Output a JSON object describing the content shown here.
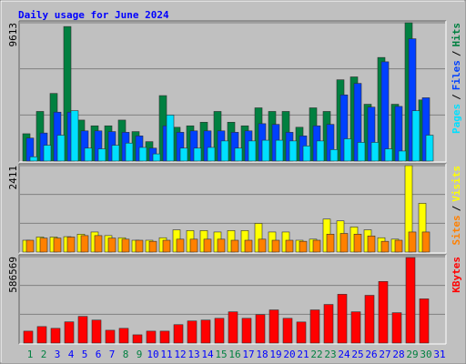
{
  "title": "Daily usage for June 2024",
  "legend_separator": "/",
  "chart_data": [
    {
      "type": "bar",
      "ylim": [
        0,
        9613
      ],
      "yticks": [
        9613
      ],
      "series": [
        {
          "name": "Hits",
          "color": "#008040",
          "values": [
            1900,
            3450,
            4700,
            9350,
            2850,
            2450,
            2450,
            2850,
            2050,
            1350,
            4550,
            2350,
            2450,
            2700,
            3450,
            2700,
            2450,
            3700,
            3450,
            3450,
            2350,
            3700,
            3450,
            5650,
            5850,
            3950,
            7200,
            3950,
            9613,
            4250,
            null
          ]
        },
        {
          "name": "Files",
          "color": "#0040ff",
          "values": [
            1600,
            1950,
            3400,
            3400,
            2100,
            2100,
            2050,
            2000,
            1750,
            900,
            2450,
            2000,
            2100,
            2100,
            2100,
            2000,
            2100,
            2600,
            2550,
            2000,
            1750,
            2450,
            2550,
            4600,
            5400,
            3750,
            6900,
            3800,
            8500,
            4400,
            null
          ]
        },
        {
          "name": "Pages",
          "color": "#00e0ff",
          "values": [
            300,
            1100,
            1800,
            3500,
            900,
            850,
            1100,
            1250,
            950,
            500,
            3200,
            900,
            900,
            950,
            1400,
            900,
            1400,
            1450,
            1450,
            1400,
            1050,
            1400,
            800,
            1550,
            1300,
            1300,
            850,
            700,
            3500,
            1800,
            null
          ]
        }
      ]
    },
    {
      "type": "bar",
      "ylim": [
        0,
        2411
      ],
      "yticks": [
        2411
      ],
      "series": [
        {
          "name": "Visits",
          "color": "#ffff00",
          "values": [
            330,
            420,
            420,
            430,
            500,
            560,
            460,
            400,
            330,
            330,
            400,
            620,
            600,
            600,
            560,
            600,
            600,
            800,
            560,
            560,
            330,
            360,
            920,
            870,
            700,
            620,
            400,
            360,
            2411,
            1360,
            null
          ]
        },
        {
          "name": "Sites",
          "color": "#ff8000",
          "values": [
            330,
            390,
            390,
            420,
            460,
            460,
            390,
            360,
            330,
            300,
            330,
            360,
            360,
            360,
            360,
            330,
            330,
            360,
            330,
            330,
            300,
            330,
            500,
            520,
            500,
            450,
            300,
            330,
            560,
            560,
            null
          ]
        }
      ]
    },
    {
      "type": "bar",
      "ylim": [
        0,
        586569
      ],
      "yticks": [
        586569
      ],
      "categories": [
        1,
        2,
        3,
        4,
        5,
        6,
        7,
        8,
        9,
        10,
        11,
        12,
        13,
        14,
        15,
        16,
        17,
        18,
        19,
        20,
        21,
        22,
        23,
        24,
        25,
        26,
        27,
        28,
        29,
        30,
        31
      ],
      "category_colors": [
        "#008040",
        "#008040",
        "#0000ff",
        "#0000ff",
        "#0000ff",
        "#0000ff",
        "#0000ff",
        "#008040",
        "#008040",
        "#0000ff",
        "#0000ff",
        "#0000ff",
        "#0000ff",
        "#0000ff",
        "#008040",
        "#008040",
        "#0000ff",
        "#0000ff",
        "#0000ff",
        "#0000ff",
        "#0000ff",
        "#008040",
        "#008040",
        "#0000ff",
        "#0000ff",
        "#0000ff",
        "#0000ff",
        "#0000ff",
        "#008040",
        "#008040",
        "#0000ff"
      ],
      "series": [
        {
          "name": "KBytes",
          "color": "#ff0000",
          "values": [
            81000,
            112000,
            100000,
            144000,
            181000,
            156000,
            87000,
            100000,
            56000,
            81000,
            81000,
            125000,
            150000,
            156000,
            168000,
            212000,
            168000,
            193000,
            225000,
            168000,
            143000,
            225000,
            262000,
            331000,
            212000,
            324000,
            418000,
            206000,
            580000,
            300000,
            null
          ]
        }
      ]
    }
  ]
}
